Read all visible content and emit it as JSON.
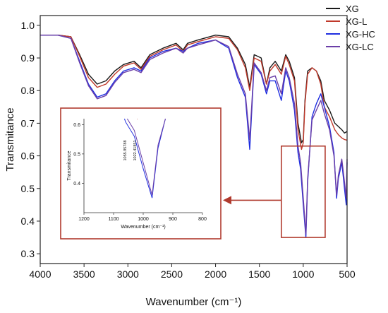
{
  "chart_data": {
    "type": "line",
    "xlabel": "Wavenumber (cm⁻¹)",
    "ylabel": "Transmitance",
    "xlim": [
      4000,
      500
    ],
    "ylim": [
      0.27,
      1.03
    ],
    "x_ticks": [
      4000,
      3500,
      3000,
      2500,
      2000,
      1500,
      1000,
      500
    ],
    "y_ticks": [
      0.3,
      0.4,
      0.5,
      0.6,
      0.7,
      0.8,
      0.9,
      1.0
    ],
    "legend_position": "top-right",
    "series": [
      {
        "name": "XG",
        "color": "#1a1a1a",
        "points": [
          [
            4000,
            0.97
          ],
          [
            3800,
            0.97
          ],
          [
            3650,
            0.965
          ],
          [
            3550,
            0.91
          ],
          [
            3450,
            0.85
          ],
          [
            3350,
            0.82
          ],
          [
            3250,
            0.83
          ],
          [
            3150,
            0.86
          ],
          [
            3050,
            0.88
          ],
          [
            2930,
            0.89
          ],
          [
            2850,
            0.87
          ],
          [
            2750,
            0.91
          ],
          [
            2600,
            0.93
          ],
          [
            2450,
            0.945
          ],
          [
            2370,
            0.925
          ],
          [
            2320,
            0.945
          ],
          [
            2200,
            0.955
          ],
          [
            2000,
            0.97
          ],
          [
            1850,
            0.965
          ],
          [
            1750,
            0.93
          ],
          [
            1660,
            0.88
          ],
          [
            1610,
            0.81
          ],
          [
            1560,
            0.91
          ],
          [
            1480,
            0.9
          ],
          [
            1420,
            0.82
          ],
          [
            1380,
            0.87
          ],
          [
            1320,
            0.89
          ],
          [
            1250,
            0.86
          ],
          [
            1200,
            0.91
          ],
          [
            1160,
            0.89
          ],
          [
            1100,
            0.84
          ],
          [
            1060,
            0.7
          ],
          [
            1020,
            0.64
          ],
          [
            1000,
            0.65
          ],
          [
            980,
            0.77
          ],
          [
            950,
            0.86
          ],
          [
            900,
            0.87
          ],
          [
            850,
            0.86
          ],
          [
            800,
            0.83
          ],
          [
            760,
            0.77
          ],
          [
            700,
            0.74
          ],
          [
            640,
            0.7
          ],
          [
            600,
            0.69
          ],
          [
            560,
            0.68
          ],
          [
            530,
            0.67
          ],
          [
            500,
            0.675
          ]
        ]
      },
      {
        "name": "XG-L",
        "color": "#c0392b",
        "points": [
          [
            4000,
            0.97
          ],
          [
            3800,
            0.97
          ],
          [
            3650,
            0.965
          ],
          [
            3550,
            0.905
          ],
          [
            3450,
            0.84
          ],
          [
            3350,
            0.81
          ],
          [
            3250,
            0.82
          ],
          [
            3150,
            0.85
          ],
          [
            3050,
            0.875
          ],
          [
            2930,
            0.885
          ],
          [
            2850,
            0.865
          ],
          [
            2750,
            0.905
          ],
          [
            2600,
            0.925
          ],
          [
            2450,
            0.94
          ],
          [
            2370,
            0.92
          ],
          [
            2320,
            0.94
          ],
          [
            2200,
            0.95
          ],
          [
            2000,
            0.965
          ],
          [
            1850,
            0.96
          ],
          [
            1750,
            0.925
          ],
          [
            1660,
            0.87
          ],
          [
            1610,
            0.8
          ],
          [
            1560,
            0.9
          ],
          [
            1480,
            0.89
          ],
          [
            1420,
            0.82
          ],
          [
            1380,
            0.86
          ],
          [
            1320,
            0.88
          ],
          [
            1250,
            0.85
          ],
          [
            1200,
            0.905
          ],
          [
            1160,
            0.88
          ],
          [
            1100,
            0.83
          ],
          [
            1060,
            0.68
          ],
          [
            1020,
            0.62
          ],
          [
            1000,
            0.64
          ],
          [
            980,
            0.76
          ],
          [
            950,
            0.85
          ],
          [
            900,
            0.87
          ],
          [
            850,
            0.86
          ],
          [
            800,
            0.82
          ],
          [
            760,
            0.75
          ],
          [
            700,
            0.72
          ],
          [
            640,
            0.68
          ],
          [
            600,
            0.665
          ],
          [
            560,
            0.655
          ],
          [
            530,
            0.65
          ],
          [
            500,
            0.648
          ]
        ]
      },
      {
        "name": "XG-HC",
        "color": "#1f2ee0",
        "points": [
          [
            4000,
            0.97
          ],
          [
            3800,
            0.97
          ],
          [
            3650,
            0.96
          ],
          [
            3550,
            0.89
          ],
          [
            3450,
            0.82
          ],
          [
            3350,
            0.78
          ],
          [
            3250,
            0.79
          ],
          [
            3150,
            0.83
          ],
          [
            3050,
            0.86
          ],
          [
            2930,
            0.87
          ],
          [
            2850,
            0.86
          ],
          [
            2750,
            0.9
          ],
          [
            2600,
            0.92
          ],
          [
            2450,
            0.93
          ],
          [
            2370,
            0.92
          ],
          [
            2320,
            0.93
          ],
          [
            2200,
            0.945
          ],
          [
            2000,
            0.955
          ],
          [
            1850,
            0.93
          ],
          [
            1750,
            0.84
          ],
          [
            1660,
            0.78
          ],
          [
            1610,
            0.62
          ],
          [
            1560,
            0.88
          ],
          [
            1480,
            0.85
          ],
          [
            1420,
            0.79
          ],
          [
            1380,
            0.83
          ],
          [
            1320,
            0.83
          ],
          [
            1250,
            0.77
          ],
          [
            1200,
            0.86
          ],
          [
            1160,
            0.83
          ],
          [
            1100,
            0.74
          ],
          [
            1060,
            0.61
          ],
          [
            1030,
            0.56
          ],
          [
            1000,
            0.45
          ],
          [
            970,
            0.35
          ],
          [
            950,
            0.52
          ],
          [
            900,
            0.72
          ],
          [
            850,
            0.76
          ],
          [
            800,
            0.79
          ],
          [
            760,
            0.75
          ],
          [
            700,
            0.69
          ],
          [
            650,
            0.61
          ],
          [
            620,
            0.47
          ],
          [
            600,
            0.53
          ],
          [
            560,
            0.58
          ],
          [
            530,
            0.5
          ],
          [
            510,
            0.45
          ],
          [
            500,
            0.58
          ]
        ]
      },
      {
        "name": "XG-LC",
        "color": "#6b3fa8",
        "points": [
          [
            4000,
            0.97
          ],
          [
            3800,
            0.97
          ],
          [
            3650,
            0.96
          ],
          [
            3550,
            0.885
          ],
          [
            3450,
            0.815
          ],
          [
            3350,
            0.775
          ],
          [
            3250,
            0.785
          ],
          [
            3150,
            0.825
          ],
          [
            3050,
            0.855
          ],
          [
            2930,
            0.865
          ],
          [
            2850,
            0.855
          ],
          [
            2750,
            0.895
          ],
          [
            2600,
            0.915
          ],
          [
            2450,
            0.93
          ],
          [
            2370,
            0.915
          ],
          [
            2320,
            0.93
          ],
          [
            2200,
            0.94
          ],
          [
            2000,
            0.955
          ],
          [
            1850,
            0.935
          ],
          [
            1750,
            0.85
          ],
          [
            1660,
            0.79
          ],
          [
            1610,
            0.65
          ],
          [
            1560,
            0.885
          ],
          [
            1480,
            0.855
          ],
          [
            1420,
            0.8
          ],
          [
            1380,
            0.84
          ],
          [
            1320,
            0.845
          ],
          [
            1250,
            0.79
          ],
          [
            1200,
            0.87
          ],
          [
            1160,
            0.84
          ],
          [
            1100,
            0.76
          ],
          [
            1060,
            0.63
          ],
          [
            1030,
            0.58
          ],
          [
            1000,
            0.47
          ],
          [
            970,
            0.36
          ],
          [
            950,
            0.53
          ],
          [
            900,
            0.71
          ],
          [
            850,
            0.74
          ],
          [
            800,
            0.77
          ],
          [
            760,
            0.73
          ],
          [
            700,
            0.68
          ],
          [
            650,
            0.6
          ],
          [
            620,
            0.48
          ],
          [
            600,
            0.54
          ],
          [
            560,
            0.59
          ],
          [
            530,
            0.52
          ],
          [
            510,
            0.47
          ],
          [
            500,
            0.59
          ]
        ]
      }
    ],
    "inset": {
      "xlabel": "Wavenumber (cm⁻¹)",
      "ylabel": "Transmitance",
      "xlim": [
        1200,
        800
      ],
      "ylim": [
        0.3,
        0.62
      ],
      "x_ticks": [
        1200,
        1100,
        1000,
        900,
        800
      ],
      "y_ticks": [
        0.4,
        0.5,
        0.6
      ],
      "annotations": [
        {
          "text": "1055.95788",
          "x": 1055
        },
        {
          "text": "1022.41851",
          "x": 1022
        }
      ],
      "source_region": {
        "x": [
          1250,
          750
        ],
        "y": [
          0.35,
          0.63
        ]
      }
    }
  }
}
